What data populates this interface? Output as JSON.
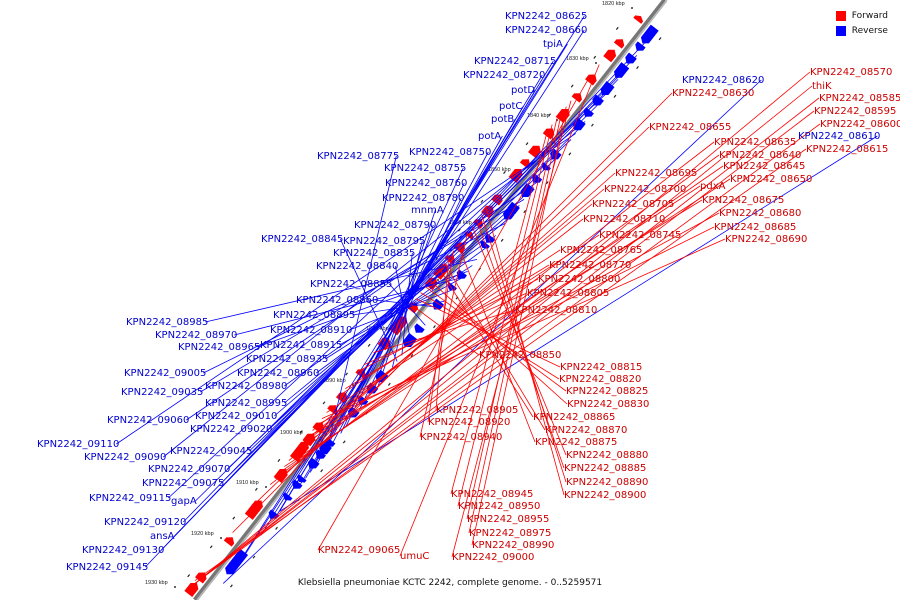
{
  "legend": {
    "forward_label": "Forward",
    "reverse_label": "Reverse",
    "forward_color": "#ff0000",
    "reverse_color": "#0000ff"
  },
  "caption": "Klebsiella pneumoniae KCTC 2242, complete genome. - 0..5259571",
  "axis_labels": [
    {
      "text": "1820 kbp"
    },
    {
      "text": "1830 kbp"
    },
    {
      "text": "1840 kbp"
    },
    {
      "text": "1850 kbp"
    },
    {
      "text": "1860 kbp"
    },
    {
      "text": "1870 kbp"
    },
    {
      "text": "1880 kbp"
    },
    {
      "text": "1890 kbp"
    },
    {
      "text": "1900 kbp"
    },
    {
      "text": "1910 kbp"
    },
    {
      "text": "1920 kbp"
    },
    {
      "text": "1930 kbp"
    }
  ],
  "reverse_labels": [
    "KPN2242_08625",
    "KPN2242_08660",
    "tpiA",
    "KPN2242_08715",
    "KPN2242_08720",
    "potD",
    "potC",
    "potB",
    "potA",
    "KPN2242_08775",
    "KPN2242_08750",
    "KPN2242_08755",
    "KPN2242_08760",
    "KPN2242_08780",
    "mnmA",
    "KPN2242_08790",
    "KPN2242_08845",
    "KPN2242_08795",
    "KPN2242_08835",
    "KPN2242_08840",
    "KPN2242_08855",
    "KPN2242_08860",
    "KPN2242_08985",
    "KPN2242_08895",
    "KPN2242_08970",
    "KPN2242_08910",
    "KPN2242_08965",
    "KPN2242_08915",
    "KPN2242_08935",
    "KPN2242_09005",
    "KPN2242_08960",
    "KPN2242_09035",
    "KPN2242_08980",
    "KPN2242_08995",
    "KPN2242_09060",
    "KPN2242_09010",
    "KPN2242_09020",
    "KPN2242_09110",
    "KPN2242_09045",
    "KPN2242_09090",
    "KPN2242_09070",
    "KPN2242_09075",
    "KPN2242_09115",
    "gapA",
    "KPN2242_09120",
    "ansA",
    "KPN2242_09130",
    "KPN2242_09145",
    "KPN2242_08620",
    "KPN2242_08610"
  ],
  "forward_labels": [
    "KPN2242_08570",
    "thiK",
    "KPN2242_08585",
    "KPN2242_08595",
    "KPN2242_08600",
    "KPN2242_08630",
    "KPN2242_08615",
    "KPN2242_08655",
    "KPN2242_08635",
    "KPN2242_08640",
    "KPN2242_08645",
    "KPN2242_08650",
    "KPN2242_08695",
    "pdxA",
    "KPN2242_08700",
    "KPN2242_08675",
    "KPN2242_08705",
    "KPN2242_08680",
    "KPN2242_08710",
    "KPN2242_08685",
    "KPN2242_08745",
    "KPN2242_08690",
    "KPN2242_08765",
    "KPN2242_08770",
    "KPN2242_08800",
    "KPN2242_08805",
    "KPN2242_08810",
    "KPN2242_08850",
    "KPN2242_08815",
    "KPN2242_08820",
    "KPN2242_08825",
    "KPN2242_08830",
    "KPN2242_08905",
    "KPN2242_08865",
    "KPN2242_08920",
    "KPN2242_08870",
    "KPN2242_08940",
    "KPN2242_08875",
    "KPN2242_08880",
    "KPN2242_08885",
    "KPN2242_08890",
    "KPN2242_08900",
    "KPN2242_08945",
    "KPN2242_08950",
    "KPN2242_08955",
    "KPN2242_08975",
    "KPN2242_08990",
    "KPN2242_09000",
    "KPN2242_09065",
    "umuC"
  ]
}
